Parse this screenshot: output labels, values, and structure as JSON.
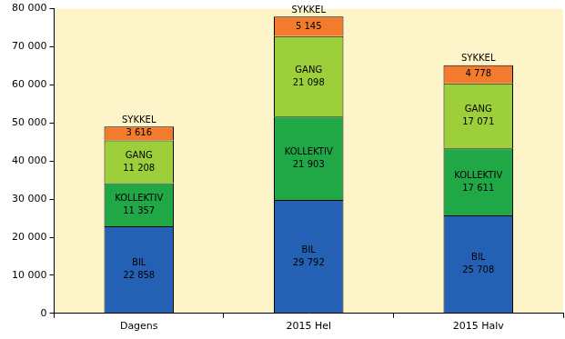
{
  "chart_data": {
    "type": "bar",
    "stacked": true,
    "data_labels": true,
    "grid": false,
    "categories": [
      "Dagens",
      "2015 Hel",
      "2015 Halv"
    ],
    "series": [
      {
        "name": "BIL",
        "color": "#2461b5",
        "values": [
          22858,
          29792,
          25708
        ],
        "value_labels": [
          "22 858",
          "29 792",
          "25 708"
        ]
      },
      {
        "name": "KOLLEKTIV",
        "color": "#21a846",
        "values": [
          11357,
          21903,
          17611
        ],
        "value_labels": [
          "11 357",
          "21 903",
          "17 611"
        ]
      },
      {
        "name": "GANG",
        "color": "#9dcf3b",
        "values": [
          11208,
          21098,
          17071
        ],
        "value_labels": [
          "11 208",
          "21 098",
          "17 071"
        ]
      },
      {
        "name": "SYKKEL",
        "color": "#f47a2e",
        "values": [
          3616,
          5145,
          4778
        ],
        "value_labels": [
          "3 616",
          "5 145",
          "4 778"
        ]
      }
    ],
    "ylim": [
      0,
      80000
    ],
    "yticks": [
      0,
      {
        "value": 10000,
        "label": "10 000"
      },
      {
        "value": 20000,
        "label": "20 000"
      },
      {
        "value": 30000,
        "label": "30 000"
      },
      {
        "value": 40000,
        "label": "40 000"
      },
      {
        "value": 50000,
        "label": "50 000"
      },
      {
        "value": 60000,
        "label": "60 000"
      },
      {
        "value": 70000,
        "label": "70 000"
      },
      {
        "value": 80000,
        "label": "80 000"
      }
    ]
  }
}
